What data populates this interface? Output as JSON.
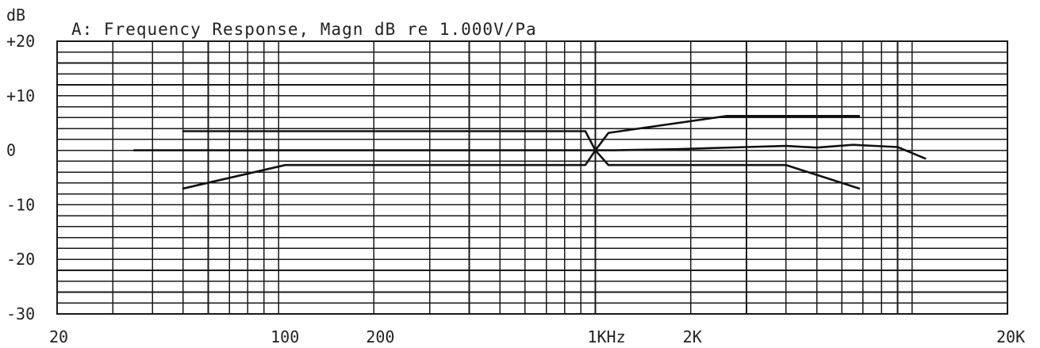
{
  "chart_data": {
    "type": "line",
    "title": "A: Frequency Response, Magn dB re 1.000V/Pa",
    "ylabel": "dB",
    "xlabel": "",
    "x_scale": "log",
    "xlim": [
      20,
      20000
    ],
    "ylim": [
      -30,
      20
    ],
    "grid": true,
    "y_ticks": [
      {
        "value": 20,
        "label": "+20"
      },
      {
        "value": 10,
        "label": "+10"
      },
      {
        "value": 0,
        "label": "0"
      },
      {
        "value": -10,
        "label": "-10"
      },
      {
        "value": -20,
        "label": "-20"
      },
      {
        "value": -30,
        "label": "-30"
      }
    ],
    "x_ticks": [
      {
        "value": 20,
        "label": "20"
      },
      {
        "value": 100,
        "label": "100"
      },
      {
        "value": 200,
        "label": "200"
      },
      {
        "value": 1000,
        "label": "1KHz"
      },
      {
        "value": 2000,
        "label": "2K"
      },
      {
        "value": 20000,
        "label": "20K"
      }
    ],
    "series": [
      {
        "x": [
          35,
          1000,
          1150,
          1800,
          3000,
          4000,
          5000,
          6500,
          9000,
          11000
        ],
        "y": [
          0,
          0,
          0,
          0.2,
          0.6,
          0.8,
          0.5,
          1.0,
          0.6,
          -1.5
        ]
      },
      {
        "x": [
          50,
          930,
          1000,
          1100,
          2600,
          6800
        ],
        "y": [
          3.5,
          3.5,
          0,
          3.2,
          6.3,
          6.3
        ]
      },
      {
        "x": [
          50,
          105,
          930,
          1000,
          1100,
          4000,
          6800
        ],
        "y": [
          -7,
          -2.7,
          -2.7,
          0,
          -2.7,
          -2.7,
          -7
        ]
      }
    ]
  }
}
